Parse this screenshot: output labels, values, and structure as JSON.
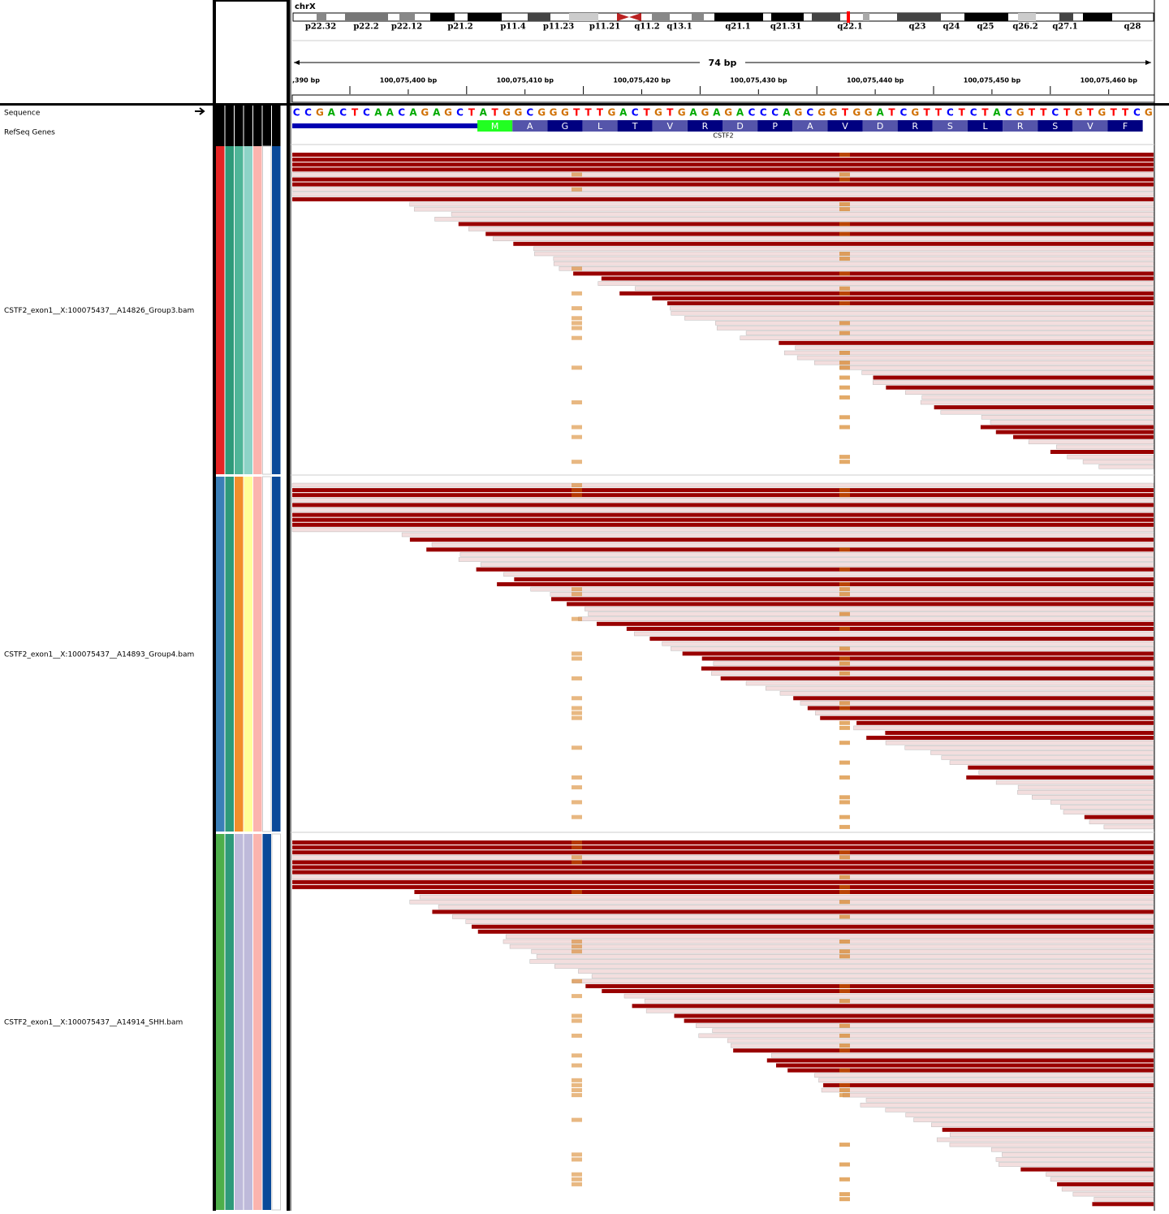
{
  "chromosome": "chrX",
  "bands": [
    "p22.32",
    "p22.2",
    "p22.12",
    "p21.2",
    "p11.4",
    "p11.23",
    "p11.21",
    "q11.2",
    "q13.1",
    "q21.1",
    "q21.31",
    "q22.1",
    "q23",
    "q24",
    "q25",
    "q26.2",
    "q27.1",
    "q28"
  ],
  "span": "74 bp",
  "ruler": [
    ",390 bp",
    "100,075,400 bp",
    "100,075,410 bp",
    "100,075,420 bp",
    "100,075,430 bp",
    "100,075,440 bp",
    "100,075,450 bp",
    "100,075,460 bp"
  ],
  "sequence_label": "Sequence",
  "genes_label": "RefSeq Genes",
  "sequence": [
    "C",
    "C",
    "G",
    "A",
    "C",
    "T",
    "C",
    "A",
    "A",
    "C",
    "A",
    "G",
    "A",
    "G",
    "C",
    "T",
    "A",
    "T",
    "G",
    "G",
    "C",
    "G",
    "G",
    "G",
    "T",
    "T",
    "T",
    "G",
    "A",
    "C",
    "T",
    "G",
    "T",
    "G",
    "A",
    "G",
    "A",
    "G",
    "A",
    "C",
    "C",
    "C",
    "A",
    "G",
    "C",
    "G",
    "G",
    "T",
    "G",
    "G",
    "A",
    "T",
    "C",
    "G",
    "T",
    "T",
    "C",
    "T",
    "C",
    "T",
    "A",
    "C",
    "G",
    "T",
    "T",
    "C",
    "T",
    "G",
    "T",
    "G",
    "T",
    "T",
    "C",
    "G"
  ],
  "amino_acids": [
    "M",
    "A",
    "G",
    "L",
    "T",
    "V",
    "R",
    "D",
    "P",
    "A",
    "V",
    "D",
    "R",
    "S",
    "L",
    "R",
    "S",
    "V",
    "F"
  ],
  "gene": "CSTF2",
  "tracks": [
    "CSTF2_exon1__X:100075437__A14826_Group3.bam",
    "CSTF2_exon1__X:100075437__A14893_Group4.bam",
    "CSTF2_exon1__X:100075437__A14914_SHH.bam"
  ]
}
